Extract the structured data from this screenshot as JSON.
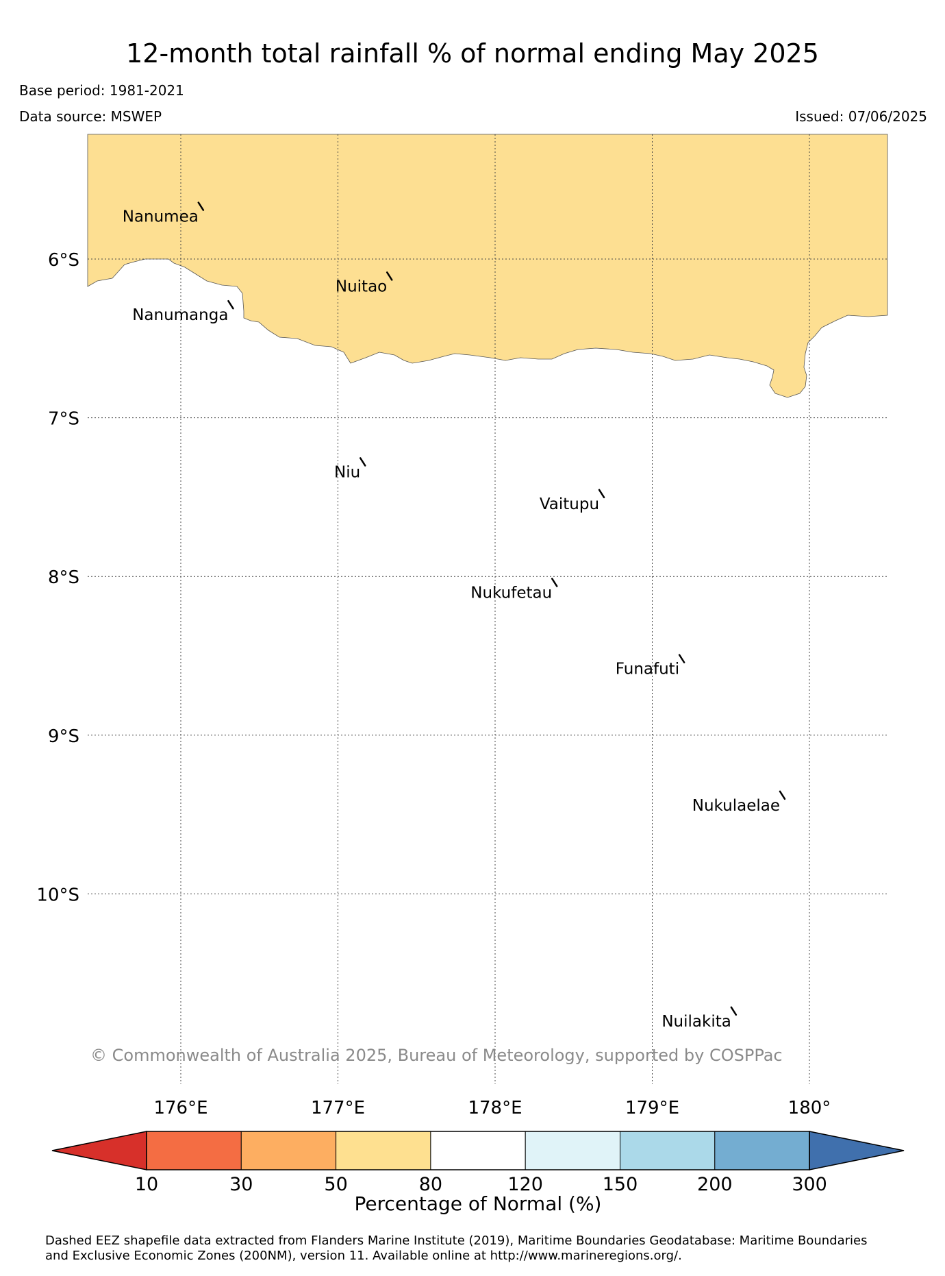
{
  "header": {
    "title": "12-month total rainfall % of normal ending May 2025",
    "base_period": "Base period: 1981-2021",
    "data_source": "Data source: MSWEP",
    "issued": "Issued: 07/06/2025"
  },
  "map": {
    "region_lon": [
      175.4,
      180.5
    ],
    "region_lat": [
      -5.2,
      -11.2
    ],
    "longitude_ticks": [
      {
        "value": 176,
        "label": "176°E"
      },
      {
        "value": 177,
        "label": "177°E"
      },
      {
        "value": 178,
        "label": "178°E"
      },
      {
        "value": 179,
        "label": "179°E"
      },
      {
        "value": 180,
        "label": "180°"
      }
    ],
    "latitude_ticks": [
      {
        "value": -6,
        "label": "6°S"
      },
      {
        "value": -7,
        "label": "7°S"
      },
      {
        "value": -8,
        "label": "8°S"
      },
      {
        "value": -9,
        "label": "9°S"
      },
      {
        "value": -10,
        "label": "10°S"
      }
    ],
    "gridlines": "dotted",
    "shaded_region": {
      "category": "50 - 80",
      "color": "#FDDF92",
      "description_extent": "northern part of map, north of roughly 6.5°S"
    },
    "islands": [
      {
        "name": "Nanumea",
        "lon": 176.13,
        "lat": -5.67
      },
      {
        "name": "Nuitao",
        "lon": 177.33,
        "lat": -6.11
      },
      {
        "name": "Nanumanga",
        "lon": 176.32,
        "lat": -6.29
      },
      {
        "name": "Niu",
        "lon": 177.16,
        "lat": -7.28
      },
      {
        "name": "Vaitupu",
        "lon": 178.68,
        "lat": -7.48
      },
      {
        "name": "Nukufetau",
        "lon": 178.38,
        "lat": -8.04
      },
      {
        "name": "Funafuti",
        "lon": 179.19,
        "lat": -8.52
      },
      {
        "name": "Nukulaelae",
        "lon": 179.83,
        "lat": -9.38
      },
      {
        "name": "Nuilakita",
        "lon": 179.52,
        "lat": -10.74
      }
    ],
    "copyright": "© Commonwealth of Australia 2025, Bureau of Meteorology, supported by COSPPac"
  },
  "colorbar": {
    "label": "Percentage of Normal (%)",
    "ticks": [
      "10",
      "30",
      "50",
      "80",
      "120",
      "150",
      "200",
      "300"
    ],
    "under_color": "#D7302A",
    "over_color": "#4070AD",
    "bins": [
      {
        "range": "10-30",
        "color": "#F46D43"
      },
      {
        "range": "30-50",
        "color": "#FDAE61"
      },
      {
        "range": "50-80",
        "color": "#FEE090"
      },
      {
        "range": "80-120",
        "color": "#FFFFFF"
      },
      {
        "range": "120-150",
        "color": "#E0F3F8"
      },
      {
        "range": "150-200",
        "color": "#ABD9E9"
      },
      {
        "range": "200-300",
        "color": "#74ADD1"
      }
    ]
  },
  "footnote": {
    "line1": "Dashed EEZ shapefile data extracted from Flanders Marine Institute (2019), Maritime Boundaries Geodatabase: Maritime Boundaries",
    "line2": "and Exclusive Economic Zones (200NM), version 11. Available online at http://www.marineregions.org/."
  }
}
